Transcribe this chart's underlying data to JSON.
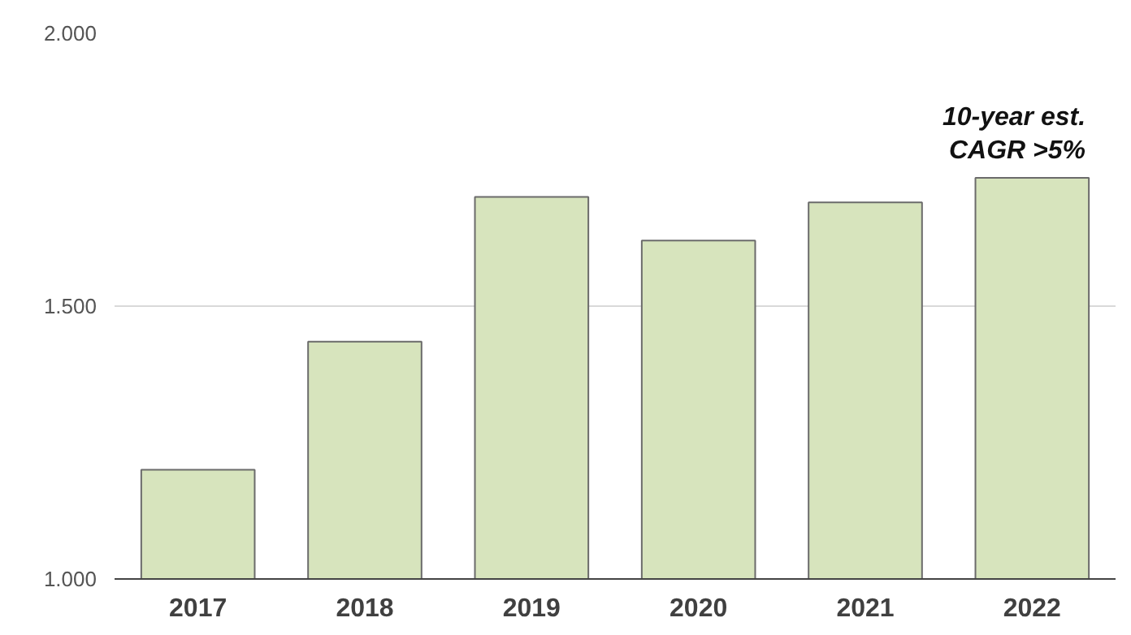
{
  "chart_data": {
    "type": "bar",
    "categories": [
      "2017",
      "2018",
      "2019",
      "2020",
      "2021",
      "2022"
    ],
    "values": [
      1200,
      1435,
      1700,
      1620,
      1690,
      1735
    ],
    "color": "#d7e4bd",
    "ylim": [
      1000,
      2000
    ],
    "yticks": [
      {
        "value": 1000,
        "label": "1.000"
      },
      {
        "value": 1500,
        "label": "1.500"
      },
      {
        "value": 2000,
        "label": "2.000"
      }
    ],
    "grid": "y",
    "annotations": [
      {
        "text": "10-year est.\nCAGR >5%",
        "x": "2022",
        "y": 1735
      }
    ]
  }
}
